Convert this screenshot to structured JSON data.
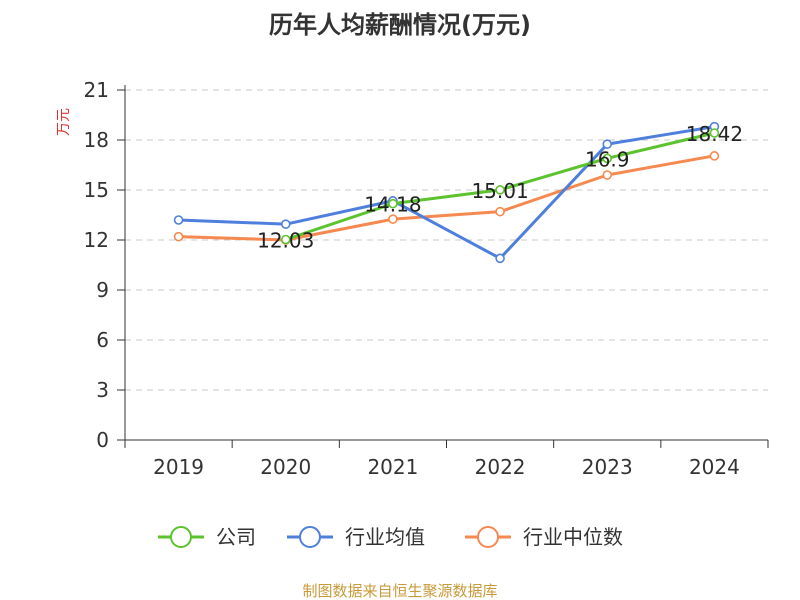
{
  "chart_data": {
    "type": "line",
    "title": "历年人均薪酬情况(万元)",
    "ylabel": "万元",
    "xlabel": "",
    "categories": [
      "2019",
      "2020",
      "2021",
      "2022",
      "2023",
      "2024"
    ],
    "ylim": [
      0,
      21
    ],
    "yticks": [
      0,
      3,
      6,
      9,
      12,
      15,
      18,
      21
    ],
    "grid": true,
    "legend_position": "bottom-center",
    "series": [
      {
        "name": "公司",
        "color": "#5cc22e",
        "values": [
          null,
          12.03,
          14.18,
          15.01,
          16.9,
          18.42
        ],
        "labels": [
          null,
          "12.03",
          "14.18",
          "15.01",
          "16.9",
          "18.42"
        ]
      },
      {
        "name": "行业均值",
        "color": "#4f7fdc",
        "values": [
          13.2,
          12.95,
          14.35,
          10.9,
          17.75,
          18.8
        ]
      },
      {
        "name": "行业中位数",
        "color": "#f5894f",
        "values": [
          12.2,
          12.0,
          13.25,
          13.7,
          15.9,
          17.05
        ]
      }
    ]
  },
  "source": "制图数据来自恒生聚源数据库",
  "colors": {
    "axis": "#333333",
    "grid": "#c8c8c8",
    "ylabel": "#e03030",
    "source": "#c89a3a"
  }
}
